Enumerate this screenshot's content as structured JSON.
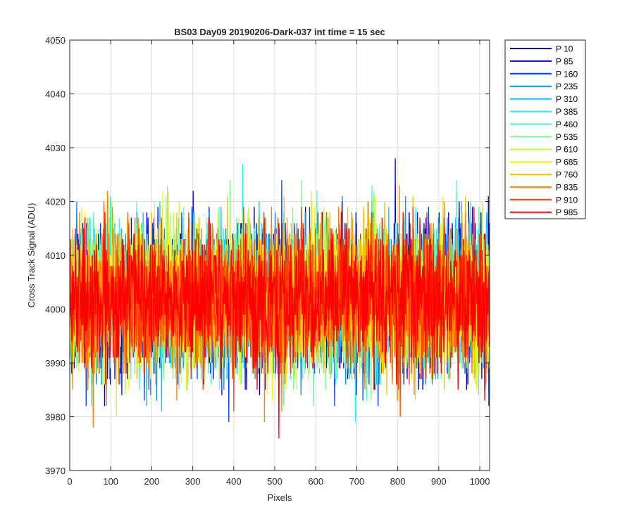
{
  "chart_data": {
    "type": "line",
    "title": "BS03 Day09 20190206-Dark-037 int time = 15 sec",
    "xlabel": "Pixels",
    "ylabel": "Cross Track Signal (ADU)",
    "xlim": [
      0,
      1024
    ],
    "ylim": [
      3970,
      4050
    ],
    "xticks": [
      0,
      100,
      200,
      300,
      400,
      500,
      600,
      700,
      800,
      900,
      1000
    ],
    "yticks": [
      3970,
      3980,
      3990,
      4000,
      4010,
      4020,
      4030,
      4040,
      4050
    ],
    "grid": true,
    "legend_position": "outside-top-right",
    "noise_model": {
      "mean": 4002,
      "std": 6.5,
      "samples": 1024
    },
    "series": [
      {
        "name": "P 10",
        "color": "#00008f"
      },
      {
        "name": "P 85",
        "color": "#0000e6"
      },
      {
        "name": "P 160",
        "color": "#0040ff"
      },
      {
        "name": "P 235",
        "color": "#0090ff"
      },
      {
        "name": "P 310",
        "color": "#00c8ff"
      },
      {
        "name": "P 385",
        "color": "#20f0f0"
      },
      {
        "name": "P 460",
        "color": "#50f5c8"
      },
      {
        "name": "P 535",
        "color": "#80f890"
      },
      {
        "name": "P 610",
        "color": "#c0ff40"
      },
      {
        "name": "P 685",
        "color": "#f8f800"
      },
      {
        "name": "P 760",
        "color": "#ffc000"
      },
      {
        "name": "P 835",
        "color": "#ff8000"
      },
      {
        "name": "P 910",
        "color": "#ff4000"
      },
      {
        "name": "P 985",
        "color": "#ff0000"
      }
    ]
  }
}
